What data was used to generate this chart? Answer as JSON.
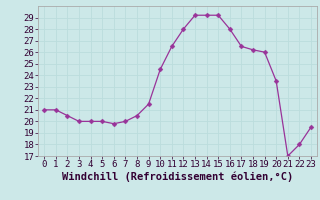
{
  "x": [
    0,
    1,
    2,
    3,
    4,
    5,
    6,
    7,
    8,
    9,
    10,
    11,
    12,
    13,
    14,
    15,
    16,
    17,
    18,
    19,
    20,
    21,
    22,
    23
  ],
  "y": [
    21,
    21,
    20.5,
    20,
    20,
    20,
    19.8,
    20,
    20.5,
    21.5,
    24.5,
    26.5,
    28,
    29.2,
    29.2,
    29.2,
    28,
    26.5,
    26.2,
    26,
    23.5,
    17,
    18,
    19.5
  ],
  "line_color": "#993399",
  "marker_color": "#993399",
  "bg_color": "#cce8e8",
  "grid_color": "#bbdddd",
  "xlabel": "Windchill (Refroidissement éolien,°C)",
  "xlabel_fontsize": 7.5,
  "ylim": [
    17,
    30
  ],
  "xlim": [
    -0.5,
    23.5
  ],
  "yticks": [
    17,
    18,
    19,
    20,
    21,
    22,
    23,
    24,
    25,
    26,
    27,
    28,
    29
  ],
  "xticks": [
    0,
    1,
    2,
    3,
    4,
    5,
    6,
    7,
    8,
    9,
    10,
    11,
    12,
    13,
    14,
    15,
    16,
    17,
    18,
    19,
    20,
    21,
    22,
    23
  ],
  "tick_fontsize": 6.5,
  "marker_size": 2.5,
  "line_width": 0.9
}
